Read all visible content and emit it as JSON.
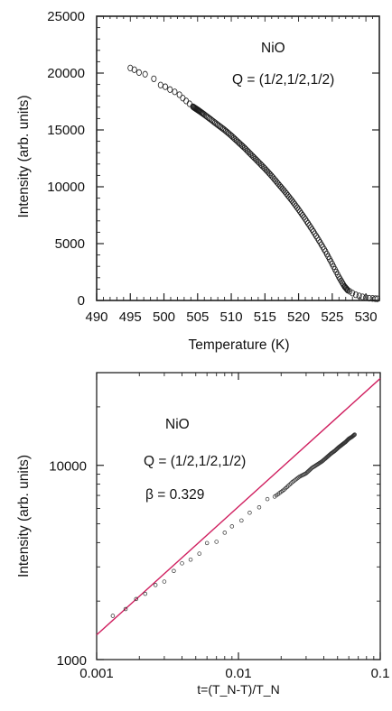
{
  "chart_data": [
    {
      "type": "scatter",
      "title": "",
      "xlabel": "Temperature (K)",
      "ylabel": "Intensity (arb. units)",
      "xlim": [
        490,
        532
      ],
      "ylim": [
        0,
        25000
      ],
      "xticks": [
        "490",
        "495",
        "500",
        "505",
        "510",
        "515",
        "520",
        "525",
        "530"
      ],
      "yticks": [
        "0",
        "5000",
        "10000",
        "15000",
        "20000",
        "25000"
      ],
      "annotations": [
        "NiO",
        "Q = (1/2,1/2,1/2)"
      ],
      "series": [
        {
          "marker": "open-circle",
          "x": [
            495,
            495.6,
            496.3,
            497.2,
            498.5,
            499.5,
            500.2,
            500.9,
            501.6,
            502.3,
            502.8,
            503.3,
            503.8,
            504.3,
            504.8,
            505.3,
            506,
            507,
            508,
            509,
            510,
            511,
            512,
            513,
            514,
            515,
            516,
            517,
            518,
            519,
            520,
            521,
            522,
            523,
            524,
            525,
            526,
            526.8,
            527.3,
            527.6,
            528,
            528.5,
            529,
            529.5,
            530,
            530.5,
            531,
            531.4,
            531.7
          ],
          "y": [
            20450,
            20300,
            20050,
            19900,
            19500,
            18950,
            18800,
            18550,
            18350,
            18100,
            17800,
            17550,
            17300,
            17050,
            16850,
            16650,
            16350,
            15900,
            15450,
            15000,
            14500,
            13950,
            13400,
            12800,
            12200,
            11600,
            10950,
            10250,
            9550,
            8800,
            8000,
            7150,
            6250,
            5300,
            4300,
            3200,
            2050,
            1250,
            900,
            800,
            650,
            500,
            400,
            320,
            250,
            200,
            180,
            160,
            150
          ]
        }
      ]
    },
    {
      "type": "scatter",
      "title": "",
      "xlabel": "t=(T_N-T)/T_N",
      "ylabel": "Intensity (arb. units)",
      "xscale": "log",
      "yscale": "log",
      "xlim": [
        0.001,
        0.1
      ],
      "ylim": [
        1000,
        30000
      ],
      "xticks": [
        "0.001",
        "0.01",
        "0.1"
      ],
      "yticks": [
        "1000",
        "10000"
      ],
      "annotations": [
        "NiO",
        "Q = (1/2,1/2,1/2)",
        "β = 0.329"
      ],
      "fit_line": {
        "x": [
          0.001,
          0.1
        ],
        "y": [
          1340,
          28000
        ]
      },
      "series": [
        {
          "marker": "open-circle",
          "x": [
            0.0013,
            0.0016,
            0.0019,
            0.0022,
            0.0026,
            0.003,
            0.0035,
            0.004,
            0.0046,
            0.0053,
            0.006,
            0.007,
            0.008,
            0.009,
            0.0105,
            0.012,
            0.014,
            0.016,
            0.018,
            0.021,
            0.024,
            0.027,
            0.03,
            0.033,
            0.036,
            0.039,
            0.042,
            0.045,
            0.048,
            0.051,
            0.054,
            0.057,
            0.06,
            0.063,
            0.066
          ],
          "y": [
            1680,
            1820,
            2050,
            2180,
            2420,
            2520,
            2860,
            3130,
            3270,
            3510,
            3980,
            4040,
            4500,
            4850,
            5200,
            5700,
            6080,
            6700,
            6900,
            7500,
            8200,
            8750,
            9100,
            9700,
            10100,
            10500,
            11000,
            11500,
            11900,
            12400,
            12800,
            13200,
            13700,
            14000,
            14400
          ]
        }
      ]
    }
  ]
}
